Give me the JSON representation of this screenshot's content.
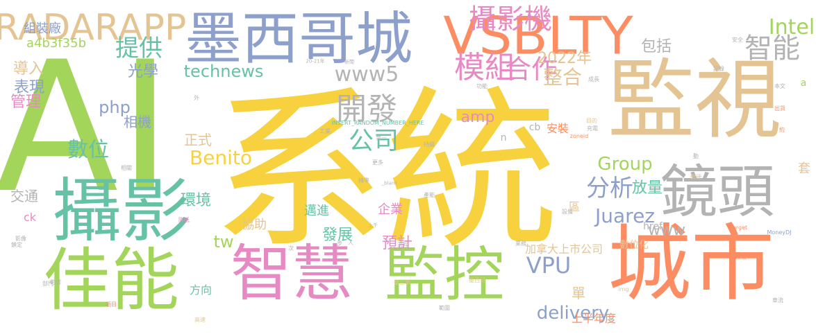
{
  "palette": {
    "yellow": "#f7d23e",
    "green": "#a3d55b",
    "teal": "#66c2a5",
    "orange": "#fc8d62",
    "blue": "#8da0cb",
    "pink": "#e78ac3",
    "tan": "#e5c494",
    "gray": "#b3b3b3"
  },
  "words": [
    {
      "text": "系統",
      "color": "yellow"
    },
    {
      "text": "AI",
      "color": "green"
    },
    {
      "text": "監視",
      "color": "tan"
    },
    {
      "text": "城市",
      "color": "orange"
    },
    {
      "text": "墨西哥城",
      "color": "blue"
    },
    {
      "text": "VSBLTY",
      "color": "orange"
    },
    {
      "text": "攝影",
      "color": "teal"
    },
    {
      "text": "佳能",
      "color": "green"
    },
    {
      "text": "智慧",
      "color": "pink"
    },
    {
      "text": "監控",
      "color": "green"
    },
    {
      "text": "鏡頭",
      "color": "gray"
    },
    {
      "text": "RADARAPP",
      "color": "tan"
    },
    {
      "text": "攝影機",
      "color": "pink"
    },
    {
      "text": "合作",
      "color": "pink"
    },
    {
      "text": "智能",
      "color": "gray"
    },
    {
      "text": "Intel",
      "color": "green"
    },
    {
      "text": "提供",
      "color": "teal"
    },
    {
      "text": "模組",
      "color": "pink"
    },
    {
      "text": "開發",
      "color": "gray"
    },
    {
      "text": "www5",
      "color": "gray"
    },
    {
      "text": "2022年",
      "color": "tan"
    },
    {
      "text": "整合",
      "color": "tan"
    },
    {
      "text": "公司",
      "color": "teal"
    },
    {
      "text": "technews",
      "color": "teal"
    },
    {
      "text": "數位",
      "color": "teal"
    },
    {
      "text": "Benito",
      "color": "yellow"
    },
    {
      "text": "Group",
      "color": "green"
    },
    {
      "text": "分析",
      "color": "blue"
    },
    {
      "text": "Juarez",
      "color": "blue"
    },
    {
      "text": "VPU",
      "color": "blue"
    },
    {
      "text": "delivery",
      "color": "blue"
    },
    {
      "text": "amp",
      "color": "pink"
    },
    {
      "text": "php",
      "color": "blue"
    },
    {
      "text": "光學",
      "color": "blue"
    },
    {
      "text": "導入",
      "color": "tan"
    },
    {
      "text": "表現",
      "color": "blue"
    },
    {
      "text": "管理",
      "color": "pink"
    },
    {
      "text": "相機",
      "color": "blue"
    },
    {
      "text": "a4b3f35b",
      "color": "green"
    },
    {
      "text": "組裝廠",
      "color": "blue"
    },
    {
      "text": "www",
      "color": "gray"
    },
    {
      "text": "放量",
      "color": "teal"
    },
    {
      "text": "環境",
      "color": "teal"
    },
    {
      "text": "發展",
      "color": "teal"
    },
    {
      "text": "預計",
      "color": "pink"
    },
    {
      "text": "tw",
      "color": "green"
    },
    {
      "text": "交通",
      "color": "gray"
    },
    {
      "text": "包括",
      "color": "gray"
    },
    {
      "text": "正式",
      "color": "tan"
    },
    {
      "text": "企業",
      "color": "pink"
    },
    {
      "text": "邁進",
      "color": "teal"
    },
    {
      "text": "協助",
      "color": "tan"
    },
    {
      "text": "加拿大上市公司",
      "color": "tan"
    },
    {
      "text": "上半年度",
      "color": "orange"
    },
    {
      "text": "ck",
      "color": "pink"
    },
    {
      "text": "cb",
      "color": "gray"
    },
    {
      "text": "href",
      "color": "gray"
    },
    {
      "text": "安裝",
      "color": "orange"
    },
    {
      "text": "單",
      "color": "tan"
    },
    {
      "text": "方向",
      "color": "teal"
    },
    {
      "text": "數位化",
      "color": "tan"
    },
    {
      "text": "套",
      "color": "tan"
    },
    {
      "text": "n",
      "color": "gray"
    },
    {
      "text": "INSERT_RANDOM_NUMBER_HERE",
      "color": "teal"
    },
    {
      "text": "20-21年",
      "color": "gray"
    },
    {
      "text": "MoneyDJ",
      "color": "blue"
    },
    {
      "text": "target",
      "color": "orange"
    },
    {
      "text": "_blank",
      "color": "gray"
    },
    {
      "text": "zoneid",
      "color": "orange"
    },
    {
      "text": "img",
      "color": "tan"
    },
    {
      "text": "上千",
      "color": "gray"
    },
    {
      "text": "第三季",
      "color": "tan"
    },
    {
      "text": "墨西哥",
      "color": "tan"
    },
    {
      "text": "新聞",
      "color": "gray"
    },
    {
      "text": "功能",
      "color": "gray"
    },
    {
      "text": "項目",
      "color": "orange"
    },
    {
      "text": "業務",
      "color": "gray"
    },
    {
      "text": "目的",
      "color": "tan"
    },
    {
      "text": "本文",
      "color": "gray"
    },
    {
      "text": "未來",
      "color": "orange"
    },
    {
      "text": "降低",
      "color": "pink"
    },
    {
      "text": "安全",
      "color": "gray"
    },
    {
      "text": "鎖定",
      "color": "gray"
    },
    {
      "text": "影像",
      "color": "gray"
    },
    {
      "text": "部門",
      "color": "gray"
    },
    {
      "text": "高速",
      "color": "tan"
    },
    {
      "text": "持續",
      "color": "gray"
    },
    {
      "text": "記錄",
      "color": "gray"
    },
    {
      "text": "第一",
      "color": "gray"
    },
    {
      "text": "更多",
      "color": "gray"
    },
    {
      "text": "成長",
      "color": "gray"
    },
    {
      "text": "充電",
      "color": "gray"
    },
    {
      "text": "軟硬",
      "color": "tan"
    },
    {
      "text": "車流",
      "color": "gray"
    },
    {
      "text": "出貨",
      "color": "orange"
    },
    {
      "text": "流程",
      "color": "gray"
    },
    {
      "text": "相關",
      "color": "gray"
    },
    {
      "text": "影響",
      "color": "gray"
    },
    {
      "text": "精準",
      "color": "gray"
    },
    {
      "text": "工業",
      "color": "gray"
    },
    {
      "text": "範圍",
      "color": "gray"
    },
    {
      "text": "產能",
      "color": "gray"
    },
    {
      "text": "設備",
      "color": "gray"
    },
    {
      "text": "區",
      "color": "tan"
    },
    {
      "text": "外",
      "color": "gray"
    },
    {
      "text": "人",
      "color": "gray"
    },
    {
      "text": "次",
      "color": "gray"
    },
    {
      "text": "步",
      "color": "gray"
    },
    {
      "text": "約",
      "color": "orange"
    },
    {
      "text": "動",
      "color": "gray"
    },
    {
      "text": "a",
      "color": "green"
    }
  ]
}
